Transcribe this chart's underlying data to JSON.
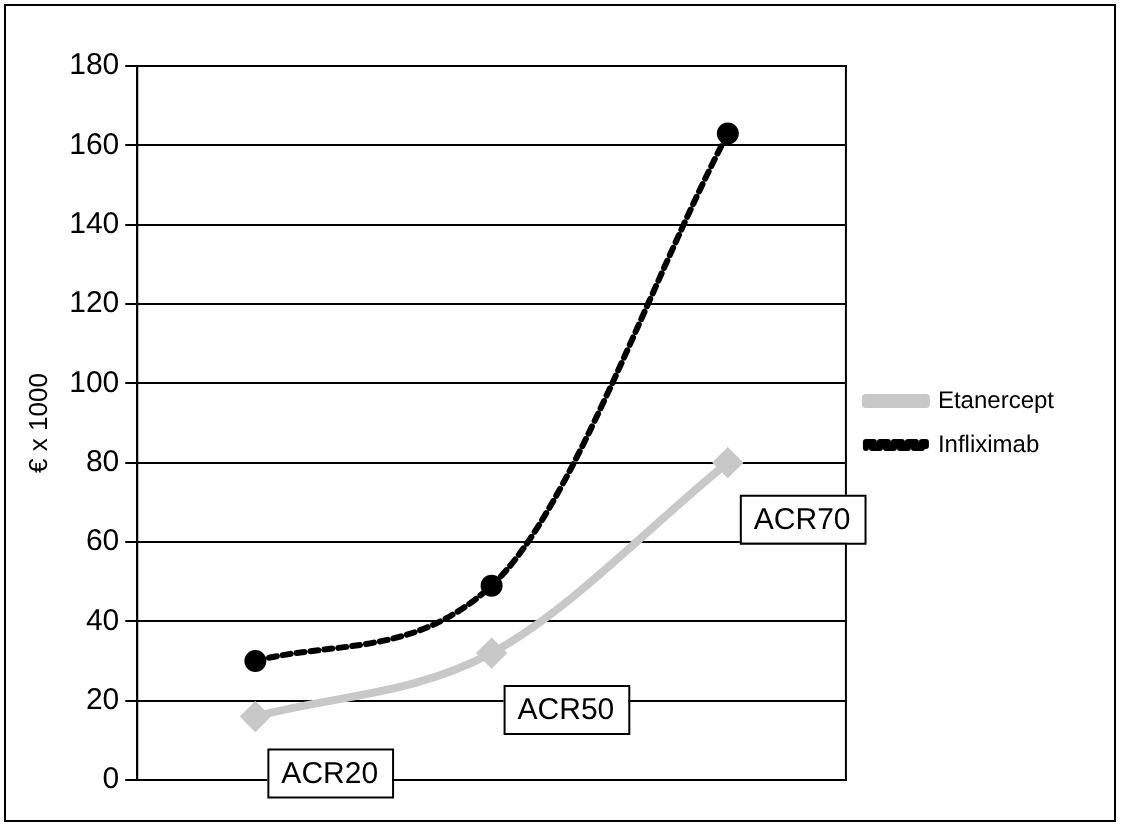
{
  "chart_data": {
    "type": "line",
    "ylabel": "€ x 1000",
    "categories": [
      "ACR20",
      "ACR50",
      "ACR70"
    ],
    "series": [
      {
        "name": "Etanercept",
        "color": "#c8c8c8",
        "values": [
          16,
          32,
          80
        ],
        "marker": "diamond",
        "line_style": "solid"
      },
      {
        "name": "Infliximab",
        "color": "#000000",
        "values": [
          30,
          49,
          163
        ],
        "marker": "circle",
        "line_style": "dashed"
      }
    ],
    "ylim": [
      0,
      180
    ],
    "yticks": [
      0,
      20,
      40,
      60,
      80,
      100,
      120,
      140,
      160,
      180
    ],
    "grid": "y",
    "legend": "right"
  }
}
